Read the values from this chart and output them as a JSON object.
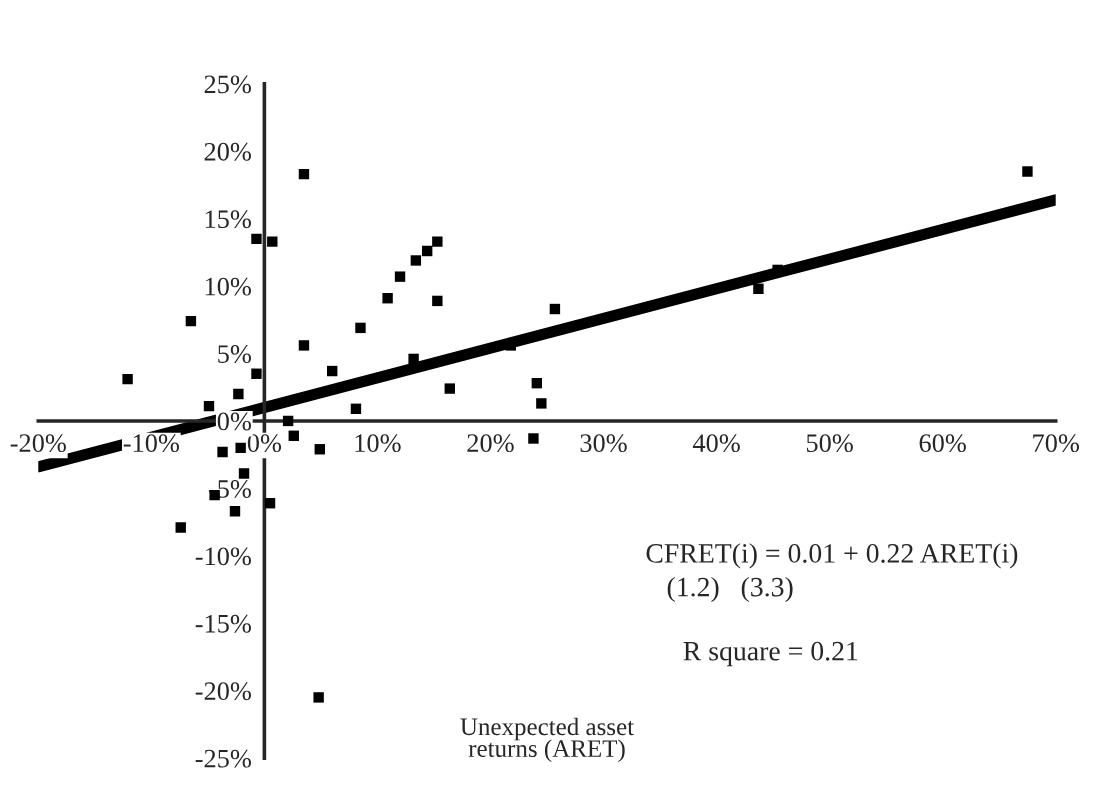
{
  "chart_data": {
    "type": "scatter",
    "xlabel": "Unexpected asset\nreturns (ARET)",
    "xlim": [
      -20,
      70
    ],
    "ylim": [
      -25,
      25
    ],
    "xticks": [
      {
        "value": -20,
        "label": "-20%"
      },
      {
        "value": -10,
        "label": "-10%"
      },
      {
        "value": 0,
        "label": "0%"
      },
      {
        "value": 10,
        "label": "10%"
      },
      {
        "value": 20,
        "label": "20%"
      },
      {
        "value": 30,
        "label": "30%"
      },
      {
        "value": 40,
        "label": "40%"
      },
      {
        "value": 50,
        "label": "50%"
      },
      {
        "value": 60,
        "label": "60%"
      },
      {
        "value": 70,
        "label": "70%"
      }
    ],
    "yticks": [
      {
        "value": -25,
        "label": "-25%"
      },
      {
        "value": -20,
        "label": "-20%"
      },
      {
        "value": -15,
        "label": "-15%"
      },
      {
        "value": -10,
        "label": "-10%"
      },
      {
        "value": -5,
        "label": "-5%"
      },
      {
        "value": 0,
        "label": "0%"
      },
      {
        "value": 5,
        "label": "5%"
      },
      {
        "value": 10,
        "label": "10%"
      },
      {
        "value": 15,
        "label": "15%"
      },
      {
        "value": 20,
        "label": "20%"
      },
      {
        "value": 25,
        "label": "25%"
      }
    ],
    "grid": false,
    "legend": false,
    "series": [
      {
        "color": "#000000",
        "marker": "square",
        "x": [
          -12.1,
          -6.5,
          -0.7,
          0.7,
          3.5,
          3.5,
          -0.7,
          -2.3,
          -4.9,
          6,
          8.5,
          10.9,
          12,
          13.4,
          14.4,
          15.3,
          15.3,
          13.2,
          16.4,
          8.1,
          2.1,
          2.6,
          4.9,
          -3.7,
          -2.1,
          21.8,
          24.1,
          24.5,
          23.8,
          25.7,
          -4.4,
          -2.6,
          -7.4,
          0.5,
          -1.8,
          4.8,
          67.5,
          45.4,
          43.7
        ],
        "values": [
          3.1,
          7.4,
          13.5,
          13.3,
          18.3,
          5.6,
          3.5,
          2,
          1.1,
          3.7,
          6.9,
          9.1,
          10.7,
          11.9,
          12.6,
          13.3,
          8.9,
          4.6,
          2.4,
          0.9,
          0,
          -1.1,
          -2.1,
          -2.3,
          -2,
          5.6,
          2.8,
          1.3,
          -1.3,
          8.3,
          -5.5,
          -6.7,
          -7.9,
          -6.1,
          -3.9,
          -20.5,
          18.5,
          11.2,
          9.8
        ]
      },
      {
        "type": "line",
        "color": "#000000",
        "x": [
          -20,
          70
        ],
        "values": [
          -3.4,
          16.4
        ]
      }
    ],
    "annotations": [
      "CFRET(i) = 0.01 + 0.22 ARET(i)",
      "(1.2)   (3.3)",
      "R square = 0.21"
    ]
  }
}
